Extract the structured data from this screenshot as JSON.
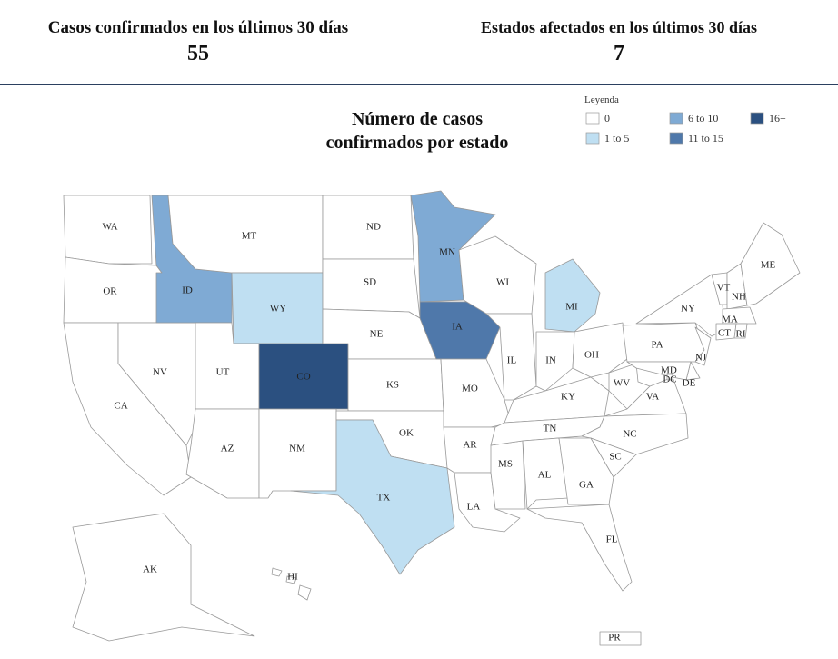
{
  "header": {
    "stats": [
      {
        "label": "Casos confirmados en los últimos 30 días",
        "value": 55
      },
      {
        "label": "Estados afectados en los últimos 30 días",
        "value": 7
      }
    ]
  },
  "map": {
    "title": [
      "Número de casos",
      "confirmados por estado"
    ],
    "legend": {
      "title": "Leyenda",
      "items": [
        {
          "label": "0",
          "color": "#ffffff"
        },
        {
          "label": "1 to 5",
          "color": "#bfdff2"
        },
        {
          "label": "6 to 10",
          "color": "#7faad4"
        },
        {
          "label": "11 to 15",
          "color": "#4f78aa"
        },
        {
          "label": "16+",
          "color": "#2b5080"
        }
      ]
    },
    "states": [
      {
        "label": "WA",
        "color": "#ffffff"
      },
      {
        "label": "OR",
        "color": "#ffffff"
      },
      {
        "label": "CA",
        "color": "#ffffff"
      },
      {
        "label": "NV",
        "color": "#ffffff"
      },
      {
        "label": "ID",
        "color": "#7faad4"
      },
      {
        "label": "MT",
        "color": "#ffffff"
      },
      {
        "label": "WY",
        "color": "#bfdff2"
      },
      {
        "label": "UT",
        "color": "#ffffff"
      },
      {
        "label": "CO",
        "color": "#2b5080"
      },
      {
        "label": "AZ",
        "color": "#ffffff"
      },
      {
        "label": "NM",
        "color": "#ffffff"
      },
      {
        "label": "ND",
        "color": "#ffffff"
      },
      {
        "label": "SD",
        "color": "#ffffff"
      },
      {
        "label": "NE",
        "color": "#ffffff"
      },
      {
        "label": "KS",
        "color": "#ffffff"
      },
      {
        "label": "OK",
        "color": "#ffffff"
      },
      {
        "label": "TX",
        "color": "#bfdff2"
      },
      {
        "label": "MN",
        "color": "#7faad4"
      },
      {
        "label": "IA",
        "color": "#4f78aa"
      },
      {
        "label": "MO",
        "color": "#ffffff"
      },
      {
        "label": "AR",
        "color": "#ffffff"
      },
      {
        "label": "LA",
        "color": "#ffffff"
      },
      {
        "label": "WI",
        "color": "#ffffff"
      },
      {
        "label": "IL",
        "color": "#ffffff"
      },
      {
        "label": "MS",
        "color": "#ffffff"
      },
      {
        "label": "MI",
        "color": "#bfdff2"
      },
      {
        "label": "IN",
        "color": "#ffffff"
      },
      {
        "label": "OH",
        "color": "#ffffff"
      },
      {
        "label": "KY",
        "color": "#ffffff"
      },
      {
        "label": "TN",
        "color": "#ffffff"
      },
      {
        "label": "AL",
        "color": "#ffffff"
      },
      {
        "label": "GA",
        "color": "#ffffff"
      },
      {
        "label": "FL",
        "color": "#ffffff"
      },
      {
        "label": "WV",
        "color": "#ffffff"
      },
      {
        "label": "VA",
        "color": "#ffffff"
      },
      {
        "label": "NC",
        "color": "#ffffff"
      },
      {
        "label": "SC",
        "color": "#ffffff"
      },
      {
        "label": "PA",
        "color": "#ffffff"
      },
      {
        "label": "NY",
        "color": "#ffffff"
      },
      {
        "label": "VT",
        "color": "#ffffff"
      },
      {
        "label": "NH",
        "color": "#ffffff"
      },
      {
        "label": "ME",
        "color": "#ffffff"
      },
      {
        "label": "MA",
        "color": "#ffffff"
      },
      {
        "label": "CT",
        "color": "#ffffff"
      },
      {
        "label": "RI",
        "color": "#ffffff"
      },
      {
        "label": "NJ",
        "color": "#ffffff"
      },
      {
        "label": "DE",
        "color": "#ffffff"
      },
      {
        "label": "MD",
        "color": "#ffffff"
      },
      {
        "label": "DC",
        "color": "#ffffff"
      },
      {
        "label": "AK",
        "color": "#ffffff"
      },
      {
        "label": "HI",
        "color": "#ffffff"
      },
      {
        "label": "PR",
        "color": "#ffffff"
      }
    ]
  }
}
